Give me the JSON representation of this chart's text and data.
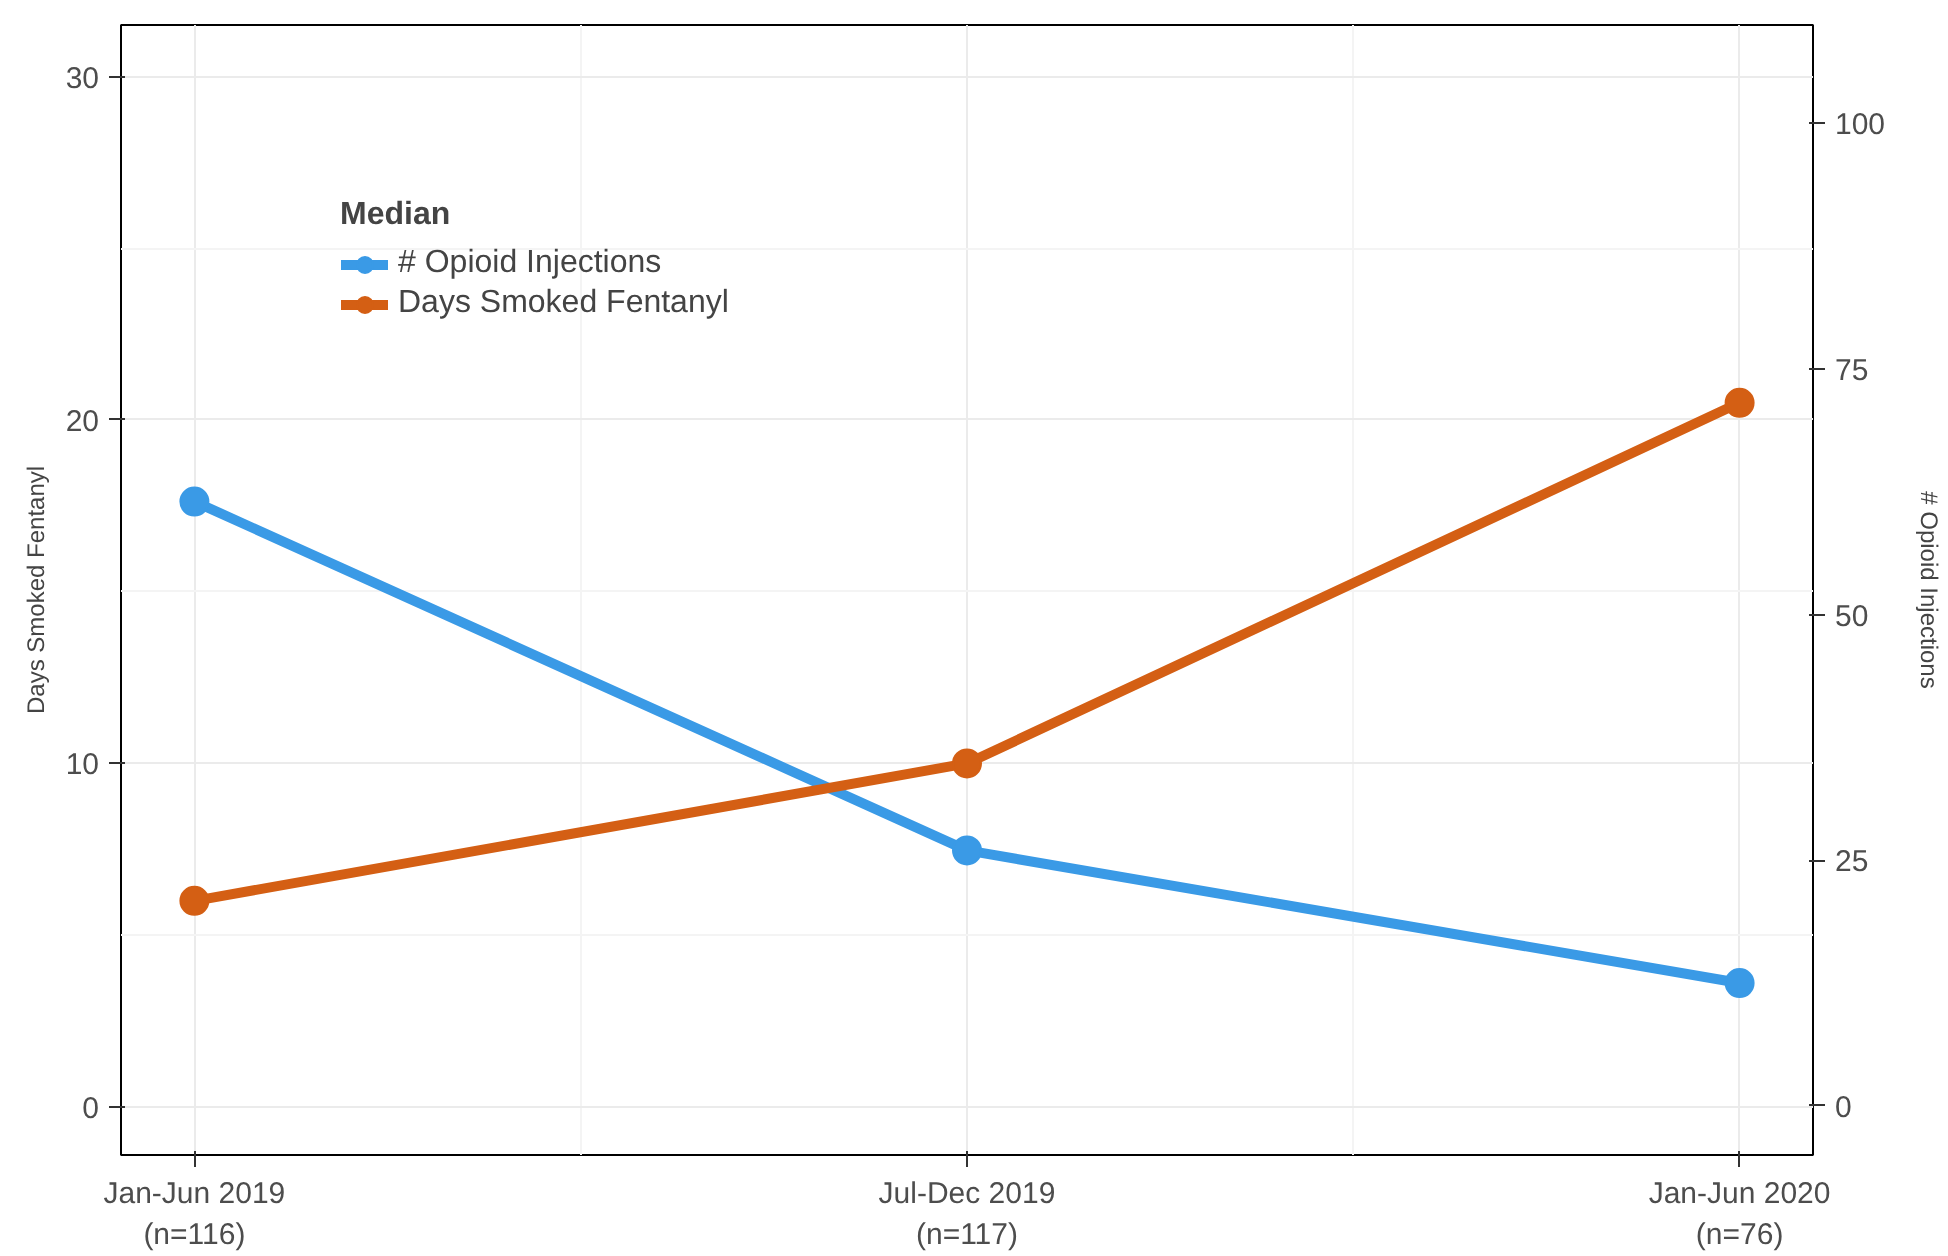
{
  "chart_data": {
    "type": "line",
    "ylabel": "Days Smoked Fentanyl",
    "y2label": "# Opioid Injections",
    "legend_title": "Median",
    "categories": [
      "Jan-Jun 2019\n(n=116)",
      "Jul-Dec 2019\n(n=117)",
      "Jan-Jun 2020\n(n=76)"
    ],
    "series": [
      {
        "name": "# Opioid Injections",
        "color": "#3a9ae6",
        "values": [
          61.5,
          26,
          12.5
        ],
        "axis": "y2"
      },
      {
        "name": "Days Smoked Fentanyl",
        "color": "#d45f14",
        "values": [
          6,
          10,
          20.5
        ],
        "axis": "y"
      }
    ],
    "ylim": [
      -1.4,
      31.5
    ],
    "yticks": [
      0,
      10,
      20,
      30
    ],
    "y2lim": [
      -5,
      110
    ],
    "y2ticks": [
      0,
      25,
      50,
      75,
      100
    ],
    "grid": true,
    "legend": "top left",
    "marker": "circle",
    "line_style": "solid"
  }
}
